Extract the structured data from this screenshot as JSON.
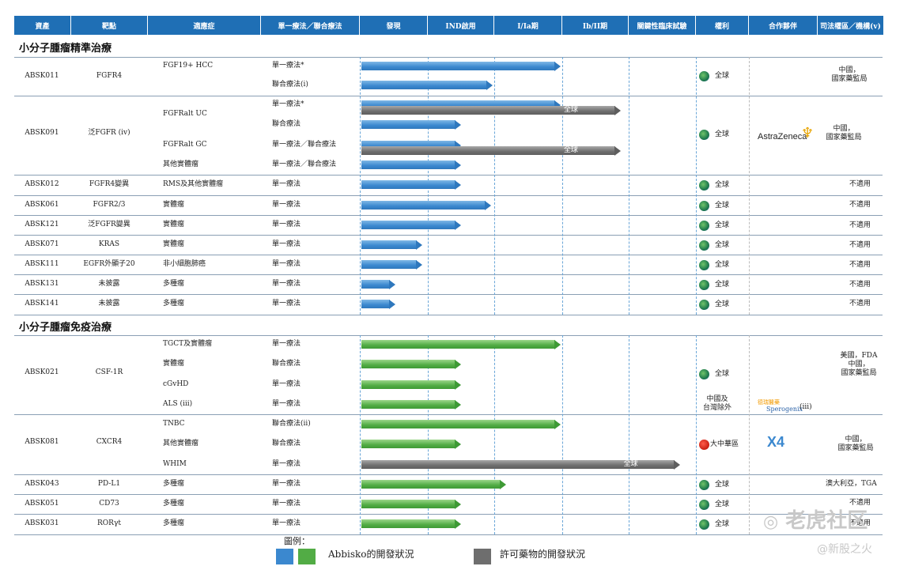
{
  "headers": [
    "資產",
    "靶點",
    "適應症",
    "單一療法／聯合療法",
    "發現",
    "IND啟用",
    "I/Ia期",
    "Ib/II期",
    "關鍵性臨床試驗",
    "權利",
    "合作夥伴",
    "司法權區／機構(v)"
  ],
  "section1_title": "小分子腫瘤精準治療",
  "section2_title": "小分子腫瘤免疫治療",
  "abbisko_label": "Abbisko的開發狀況",
  "licensed_label": "許可藥物的開發狀況",
  "legend_title": "圖例：",
  "global_text": "全球",
  "na_text": "不適用",
  "china_regulator": "中國，\n國家藥監局",
  "fda_china": "美國，FDA\n中國，\n國家藥監局",
  "australia": "澳大利亞，TGA",
  "greater_china": "大中華區",
  "ex_china": "中國及\n台灣除外",
  "astrazeneca": "AstraZeneca",
  "spero_cn": "德瑞醫藥",
  "spero": "Sperogenix",
  "spero_note": "(iii)",
  "x4": "X4",
  "watermark_cn": "老虎社区",
  "watermark_sub": "@新股之火",
  "rows": [
    {
      "asset": "ABSK011",
      "target": "FGFR4",
      "ind": "FGF19+ HCC",
      "therapy": "單一療法*"
    },
    {
      "asset": "",
      "target": "",
      "ind": "",
      "therapy": "聯合療法(i)"
    },
    {
      "asset": "ABSK091",
      "target": "泛FGFR (iv)",
      "ind": "FGFRalt UC",
      "therapy": "單一療法*"
    },
    {
      "asset": "",
      "target": "",
      "ind": "",
      "therapy": "聯合療法"
    },
    {
      "asset": "",
      "target": "",
      "ind": "FGFRalt GC",
      "therapy": "單一療法／聯合療法"
    },
    {
      "asset": "",
      "target": "",
      "ind": "其他實體瘤",
      "therapy": "單一療法／聯合療法"
    },
    {
      "asset": "ABSK012",
      "target": "FGFR4變異",
      "ind": "RMS及其他實體瘤",
      "therapy": "單一療法"
    },
    {
      "asset": "ABSK061",
      "target": "FGFR2/3",
      "ind": "實體瘤",
      "therapy": "單一療法"
    },
    {
      "asset": "ABSK121",
      "target": "泛FGFR變異",
      "ind": "實體瘤",
      "therapy": "單一療法"
    },
    {
      "asset": "ABSK071",
      "target": "KRAS",
      "ind": "實體瘤",
      "therapy": "單一療法"
    },
    {
      "asset": "ABSK111",
      "target": "EGFR外顯子20",
      "ind": "非小細胞肺癌",
      "therapy": "單一療法"
    },
    {
      "asset": "ABSK131",
      "target": "未披露",
      "ind": "多種瘤",
      "therapy": "單一療法"
    },
    {
      "asset": "ABSK141",
      "target": "未披露",
      "ind": "多種瘤",
      "therapy": "單一療法"
    },
    {
      "asset": "ABSK021",
      "target": "CSF-1R",
      "ind": "TGCT及實體瘤",
      "therapy": "單一療法"
    },
    {
      "asset": "",
      "target": "",
      "ind": "實體瘤",
      "therapy": "聯合療法"
    },
    {
      "asset": "",
      "target": "",
      "ind": "cGvHD",
      "therapy": "單一療法"
    },
    {
      "asset": "",
      "target": "",
      "ind": "ALS (iii)",
      "therapy": "單一療法"
    },
    {
      "asset": "ABSK081",
      "target": "CXCR4",
      "ind": "TNBC",
      "therapy": "聯合療法(ii)"
    },
    {
      "asset": "",
      "target": "",
      "ind": "其他實體瘤",
      "therapy": "聯合療法"
    },
    {
      "asset": "",
      "target": "",
      "ind": "WHIM",
      "therapy": "單一療法"
    },
    {
      "asset": "ABSK043",
      "target": "PD-L1",
      "ind": "多種瘤",
      "therapy": "單一療法"
    },
    {
      "asset": "ABSK051",
      "target": "CD73",
      "ind": "多種瘤",
      "therapy": "單一療法"
    },
    {
      "asset": "ABSK031",
      "target": "RORγt",
      "ind": "多種瘤",
      "therapy": "單一療法"
    }
  ],
  "bars": [
    {
      "stage": 2.98,
      "color": "blue"
    },
    {
      "stage": 1.98,
      "color": "blue"
    },
    {
      "stage": 2.98,
      "color": "blue"
    },
    {
      "stage": 1.5,
      "color": "blue"
    },
    {
      "stage": 1.5,
      "color": "blue"
    },
    {
      "stage": 1.5,
      "color": "blue"
    },
    {
      "stage": 1.5,
      "color": "blue"
    },
    {
      "stage": 1.95,
      "color": "blue"
    },
    {
      "stage": 1.5,
      "color": "blue"
    },
    {
      "stage": 0.92,
      "color": "blue"
    },
    {
      "stage": 0.92,
      "color": "blue"
    },
    {
      "stage": 0.52,
      "color": "blue"
    },
    {
      "stage": 0.52,
      "color": "blue"
    },
    {
      "stage": 2.98,
      "color": "green"
    },
    {
      "stage": 1.5,
      "color": "green"
    },
    {
      "stage": 1.5,
      "color": "green"
    },
    {
      "stage": 1.5,
      "color": "green"
    },
    {
      "stage": 2.98,
      "color": "green"
    },
    {
      "stage": 1.5,
      "color": "green"
    },
    {
      "stage": 0,
      "color": "green"
    },
    {
      "stage": 2.18,
      "color": "green"
    },
    {
      "stage": 1.5,
      "color": "green"
    },
    {
      "stage": 1.5,
      "color": "green"
    }
  ],
  "licensed_bars": [
    {
      "row": 2,
      "stage": 3.88,
      "label": "全球"
    },
    {
      "row": 4,
      "stage": 3.88,
      "label": "全球"
    },
    {
      "row": 19,
      "stage": 4.77,
      "label": "全球"
    }
  ]
}
